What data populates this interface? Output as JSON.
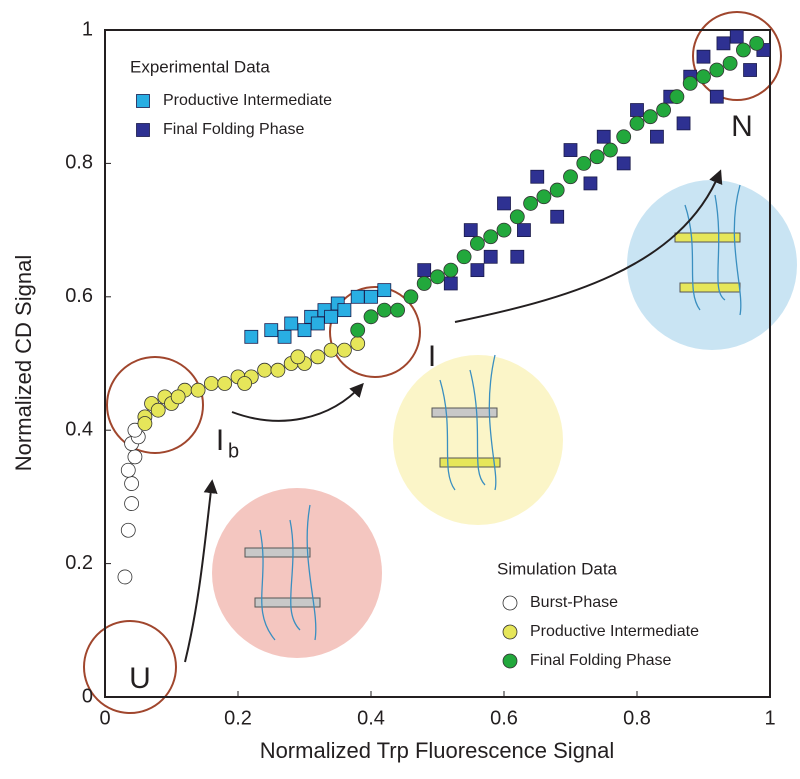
{
  "chart_data": {
    "type": "scatter",
    "x_label": "Normalized Trp Fluorescence Signal",
    "y_label": "Normalized CD Signal",
    "xlim": [
      0,
      1
    ],
    "ylim": [
      0,
      1
    ],
    "xticks": [
      0,
      0.2,
      0.4,
      0.6,
      0.8,
      1
    ],
    "yticks": [
      0,
      0.2,
      0.4,
      0.6,
      0.8,
      1
    ],
    "experimental": {
      "title": "Experimental Data",
      "series": [
        {
          "name": "Productive Intermediate",
          "color": "#29aee3",
          "marker": "square",
          "x": [
            0.22,
            0.25,
            0.27,
            0.28,
            0.3,
            0.31,
            0.32,
            0.33,
            0.34,
            0.35,
            0.36,
            0.38,
            0.4,
            0.42
          ],
          "values": [
            0.54,
            0.55,
            0.54,
            0.56,
            0.55,
            0.57,
            0.56,
            0.58,
            0.57,
            0.59,
            0.58,
            0.6,
            0.6,
            0.61
          ]
        },
        {
          "name": "Final Folding Phase",
          "color": "#2e3192",
          "marker": "square",
          "x": [
            0.48,
            0.52,
            0.55,
            0.58,
            0.6,
            0.63,
            0.65,
            0.68,
            0.7,
            0.73,
            0.75,
            0.78,
            0.8,
            0.83,
            0.85,
            0.87,
            0.9,
            0.92,
            0.95,
            0.97,
            0.99,
            0.93,
            0.88,
            0.62,
            0.56
          ],
          "values": [
            0.64,
            0.62,
            0.7,
            0.66,
            0.74,
            0.7,
            0.78,
            0.72,
            0.82,
            0.77,
            0.84,
            0.8,
            0.88,
            0.84,
            0.9,
            0.86,
            0.96,
            0.9,
            0.99,
            0.94,
            0.97,
            0.98,
            0.93,
            0.66,
            0.64
          ]
        }
      ]
    },
    "simulation": {
      "title": "Simulation Data",
      "series": [
        {
          "name": "Burst-Phase",
          "color": "#ffffff",
          "marker": "circle",
          "x": [
            0.03,
            0.035,
            0.04,
            0.04,
            0.035,
            0.045,
            0.04,
            0.05,
            0.045
          ],
          "values": [
            0.18,
            0.25,
            0.29,
            0.32,
            0.34,
            0.36,
            0.38,
            0.39,
            0.4
          ]
        },
        {
          "name": "Productive Intermediate",
          "color": "#e6e65a",
          "marker": "circle",
          "x": [
            0.06,
            0.07,
            0.08,
            0.09,
            0.1,
            0.12,
            0.14,
            0.16,
            0.18,
            0.2,
            0.22,
            0.24,
            0.26,
            0.28,
            0.3,
            0.32,
            0.34,
            0.36,
            0.38,
            0.06,
            0.11,
            0.21,
            0.29
          ],
          "values": [
            0.42,
            0.44,
            0.43,
            0.45,
            0.44,
            0.46,
            0.46,
            0.47,
            0.47,
            0.48,
            0.48,
            0.49,
            0.49,
            0.5,
            0.5,
            0.51,
            0.52,
            0.52,
            0.53,
            0.41,
            0.45,
            0.47,
            0.51
          ]
        },
        {
          "name": "Final Folding Phase",
          "color": "#22a83c",
          "marker": "circle",
          "x": [
            0.38,
            0.42,
            0.46,
            0.5,
            0.54,
            0.58,
            0.62,
            0.66,
            0.7,
            0.74,
            0.78,
            0.82,
            0.86,
            0.9,
            0.94,
            0.98,
            0.4,
            0.44,
            0.48,
            0.52,
            0.56,
            0.6,
            0.64,
            0.68,
            0.72,
            0.76,
            0.8,
            0.84,
            0.88,
            0.92,
            0.96
          ],
          "values": [
            0.55,
            0.58,
            0.6,
            0.63,
            0.66,
            0.69,
            0.72,
            0.75,
            0.78,
            0.81,
            0.84,
            0.87,
            0.9,
            0.93,
            0.95,
            0.98,
            0.57,
            0.58,
            0.62,
            0.64,
            0.68,
            0.7,
            0.74,
            0.76,
            0.8,
            0.82,
            0.86,
            0.88,
            0.92,
            0.94,
            0.97
          ]
        }
      ]
    },
    "annotations": [
      {
        "text": "U"
      },
      {
        "text": "I",
        "sub": "b"
      },
      {
        "text": "I"
      },
      {
        "text": "N"
      }
    ]
  }
}
